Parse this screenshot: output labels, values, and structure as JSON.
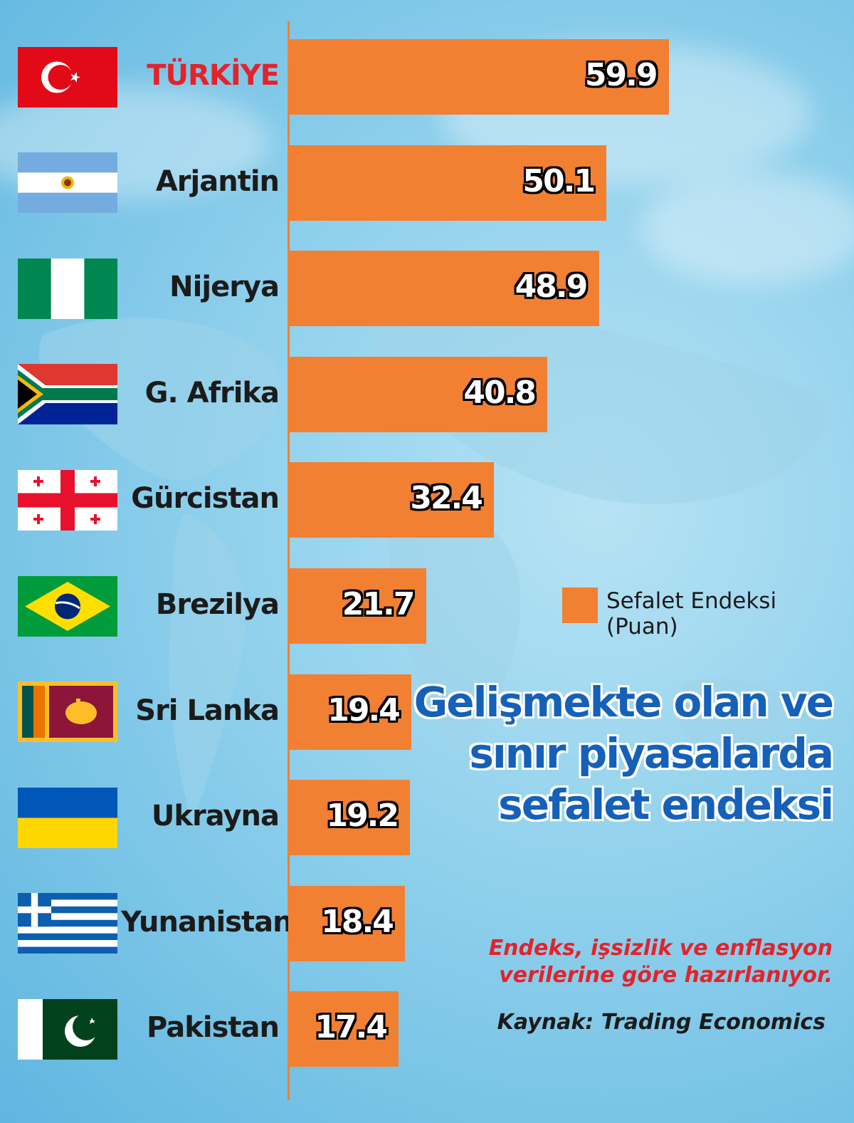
{
  "chart_data": {
    "type": "bar",
    "orientation": "horizontal",
    "title": "Gelişmekte olan ve sınır piyasalarda sefalet endeksi",
    "subtitle": "Endeks, işsizlik ve enflasyon verilerine göre hazırlanıyor.",
    "source": "Kaynak: Trading Economics",
    "legend": {
      "label": "Sefalet Endeksi (Puan)",
      "color": "#f28033",
      "position": "right"
    },
    "highlight_category": "TÜRKİYE",
    "highlight_color": "#e3232a",
    "xlim": [
      0,
      60
    ],
    "categories": [
      "TÜRKİYE",
      "Arjantin",
      "Nijerya",
      "G. Afrika",
      "Gürcistan",
      "Brezilya",
      "Sri Lanka",
      "Ukrayna",
      "Yunanistan",
      "Pakistan"
    ],
    "values": [
      59.9,
      50.1,
      48.9,
      40.8,
      32.4,
      21.7,
      19.4,
      19.2,
      18.4,
      17.4
    ],
    "value_labels": [
      "59.9",
      "50.1",
      "48.9",
      "40.8",
      "32.4",
      "21.7",
      "19.4",
      "19.2",
      "18.4",
      "17.4"
    ],
    "flags": [
      "turkey-flag-icon",
      "argentina-flag-icon",
      "nigeria-flag-icon",
      "south-africa-flag-icon",
      "georgia-flag-icon",
      "brazil-flag-icon",
      "sri-lanka-flag-icon",
      "ukraine-flag-icon",
      "greece-flag-icon",
      "pakistan-flag-icon"
    ]
  },
  "colors": {
    "bar": "#f28033",
    "title": "#1560b8",
    "subtitle": "#e3232a",
    "text": "#1b1b1b"
  }
}
